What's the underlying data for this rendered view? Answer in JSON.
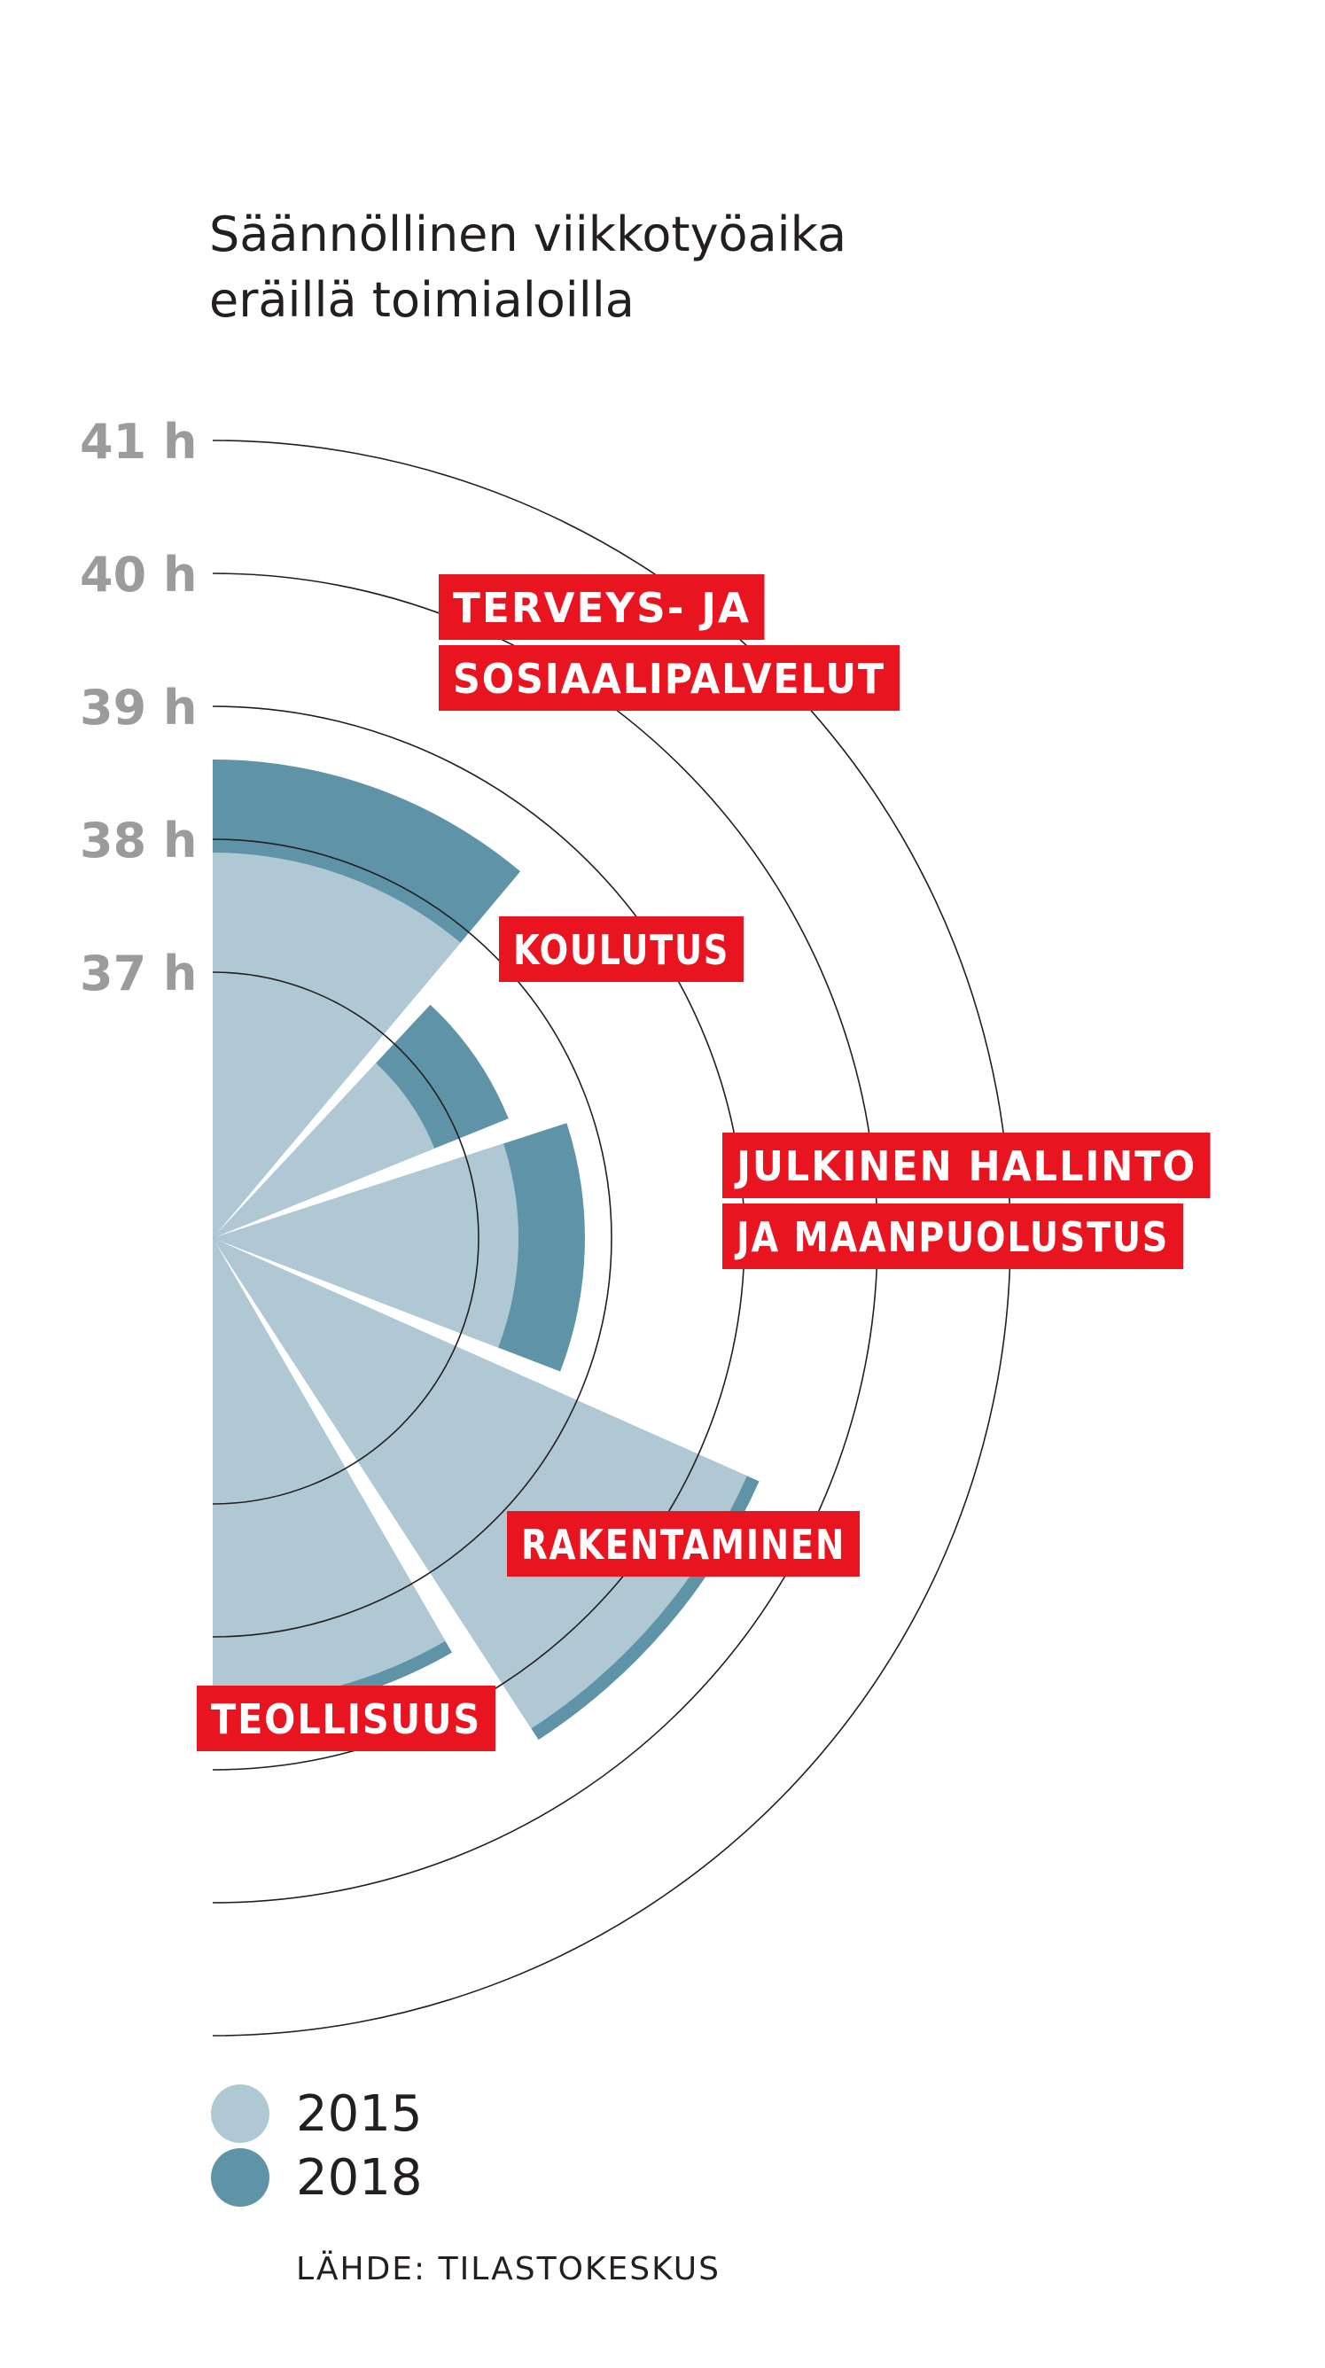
{
  "title_line1": "Säännöllinen viikkotyöaika",
  "title_line2": "eräillä toimialoilla",
  "source": "LÄHDE: TILASTOKESKUS",
  "colors": {
    "series_2015": "#b0c8d4",
    "series_2018": "#5f94a8",
    "label_bg": "#e8141f",
    "label_text": "#ffffff",
    "tick_text": "#9b9b9b",
    "ring": "#231f20"
  },
  "legend": [
    {
      "name": "2015",
      "color": "#b0c8d4"
    },
    {
      "name": "2018",
      "color": "#5f94a8"
    }
  ],
  "chart_data": {
    "type": "radial-bar",
    "unit": "h",
    "radial_ticks": [
      "37 h",
      "38 h",
      "39 h",
      "40 h",
      "41 h"
    ],
    "tick_values": [
      37,
      38,
      39,
      40,
      41
    ],
    "categories": [
      {
        "label_lines": [
          "TERVEYS- JA",
          "SOSIAALIPALVELUT"
        ],
        "v2015": 37.9,
        "v2018": 38.6
      },
      {
        "label_lines": [
          "KOULUTUS"
        ],
        "v2015": 36.8,
        "v2018": 37.4
      },
      {
        "label_lines": [
          "JULKINEN HALLINTO",
          "JA MAANPUOLUSTUS"
        ],
        "v2015": 37.3,
        "v2018": 37.8
      },
      {
        "label_lines": [
          "RAKENTAMINEN"
        ],
        "v2015": 39.4,
        "v2018": 39.5
      },
      {
        "label_lines": [
          "TEOLLISUUS"
        ],
        "v2015": 38.5,
        "v2018": 38.6
      }
    ],
    "series": [
      {
        "name": "2015"
      },
      {
        "name": "2018"
      }
    ]
  }
}
